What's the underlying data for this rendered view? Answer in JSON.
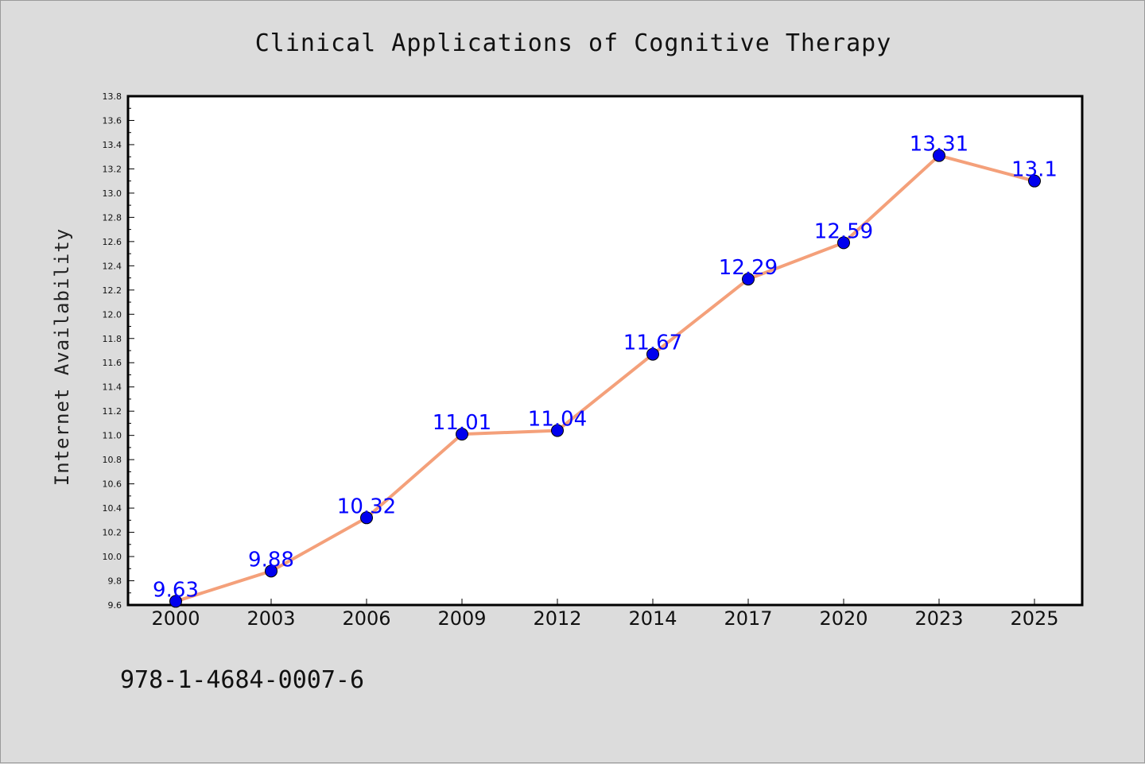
{
  "chart_data": {
    "type": "line",
    "title": "Clinical Applications of Cognitive Therapy",
    "xlabel": "",
    "ylabel": "Internet Availability",
    "categories": [
      "2000",
      "2003",
      "2006",
      "2009",
      "2012",
      "2014",
      "2017",
      "2020",
      "2023",
      "2025"
    ],
    "series": [
      {
        "values": [
          9.63,
          9.88,
          10.32,
          11.01,
          11.04,
          11.67,
          12.29,
          12.59,
          13.31,
          13.1
        ],
        "labels": [
          "9.63",
          "9.88",
          "10.32",
          "11.01",
          "11.04",
          "11.67",
          "12.29",
          "12.59",
          "13.31",
          "13.1"
        ],
        "line_color": "#f4a07a",
        "marker_color": "#0000ee"
      }
    ],
    "ylim": [
      9.6,
      13.8
    ],
    "yticks": [
      "9.6",
      "9.8",
      "10.0",
      "10.2",
      "10.4",
      "10.6",
      "10.8",
      "11.0",
      "11.2",
      "11.4",
      "11.6",
      "11.8",
      "12.0",
      "12.2",
      "12.4",
      "12.6",
      "12.8",
      "13.0",
      "13.2",
      "13.4",
      "13.6",
      "13.8"
    ],
    "grid": false,
    "legend": "none"
  },
  "footer": {
    "isbn": "978-1-4684-0007-6"
  },
  "colors": {
    "background": "#dcdcdc",
    "plot_area": "#ffffff",
    "data_label": "#0000ff"
  }
}
